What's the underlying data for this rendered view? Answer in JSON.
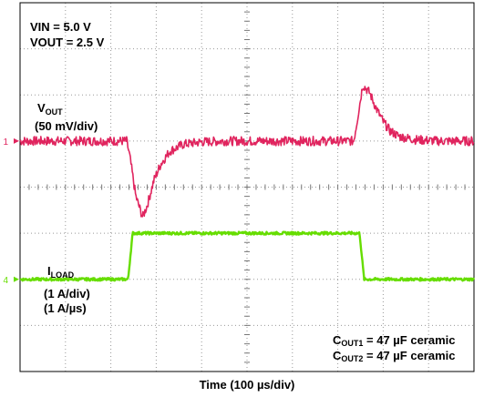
{
  "chart_data": {
    "type": "line",
    "title": "",
    "xlabel": "Time (100 µs/div)",
    "xlim": [
      0,
      10
    ],
    "ylim": [
      -4,
      4
    ],
    "grid": true,
    "conditions": {
      "vin": "VIN = 5.0 V",
      "vout": "VOUT = 2.5 V"
    },
    "channels": [
      {
        "id": "1",
        "marker": "1",
        "color": "#e0245e",
        "offset_div": 1.0
      },
      {
        "id": "4",
        "marker": "4",
        "color": "#66dd00",
        "offset_div": -2.0
      }
    ],
    "series": [
      {
        "channel": "1",
        "label_main": "V",
        "label_sub": "OUT",
        "label_scale": "(50 mV/div)",
        "color": "#e0245e",
        "noise": 0.1,
        "x": [
          0,
          2.35,
          2.42,
          2.55,
          2.7,
          2.8,
          2.95,
          3.1,
          3.3,
          3.6,
          4.0,
          4.5,
          7.35,
          7.42,
          7.55,
          7.7,
          7.85,
          8.0,
          8.15,
          8.35,
          8.7,
          9.2,
          10
        ],
        "y": [
          0,
          0,
          -0.35,
          -1.2,
          -1.65,
          -1.4,
          -0.85,
          -0.5,
          -0.22,
          -0.07,
          -0.02,
          0,
          0,
          0.4,
          1.22,
          1.05,
          0.7,
          0.42,
          0.22,
          0.1,
          0.03,
          0,
          0
        ]
      },
      {
        "channel": "4",
        "label_main": "I",
        "label_sub": "LOAD",
        "label_scale": "(1 A/div)",
        "label_rate": "(1 A/µs)",
        "color": "#66dd00",
        "noise": 0.03,
        "x": [
          0,
          2.38,
          2.48,
          7.48,
          7.58,
          10
        ],
        "y": [
          0,
          0,
          1.0,
          1.0,
          0,
          0
        ]
      }
    ],
    "annotations": {
      "cout1_main": "C",
      "cout1_sub": "OUT1",
      "cout1_rest": " = 47 µF ceramic",
      "cout2_main": "C",
      "cout2_sub": "OUT2",
      "cout2_rest": " = 47 µF ceramic"
    }
  }
}
